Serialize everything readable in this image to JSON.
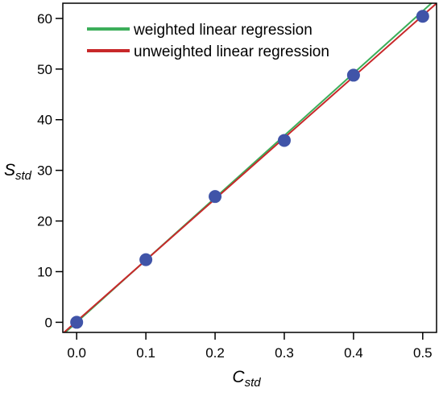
{
  "chart_data": {
    "type": "scatter",
    "xlabel": {
      "main": "C",
      "sub": "std"
    },
    "ylabel": {
      "main": "S",
      "sub": "std"
    },
    "xlim": [
      -0.02,
      0.52
    ],
    "ylim": [
      -2,
      63
    ],
    "xticks": [
      0.0,
      0.1,
      0.2,
      0.3,
      0.4,
      0.5
    ],
    "xtick_labels": [
      "0.0",
      "0.1",
      "0.2",
      "0.3",
      "0.4",
      "0.5"
    ],
    "yticks": [
      0,
      10,
      20,
      30,
      40,
      50,
      60
    ],
    "ytick_labels": [
      "0",
      "10",
      "20",
      "30",
      "40",
      "50",
      "60"
    ],
    "grid": false,
    "legend_position": "top-left",
    "points": {
      "x": [
        0.0,
        0.1,
        0.2,
        0.3,
        0.4,
        0.5
      ],
      "y": [
        0.0,
        12.36,
        24.83,
        35.91,
        48.79,
        60.42
      ],
      "color": "#4054a8"
    },
    "lines": [
      {
        "name": "weighted linear regression",
        "color": "#3cae5a",
        "slope": 122.9,
        "intercept": 0.0
      },
      {
        "name": "unweighted linear regression",
        "color": "#c8282a",
        "slope": 120.7,
        "intercept": 0.209
      }
    ]
  }
}
